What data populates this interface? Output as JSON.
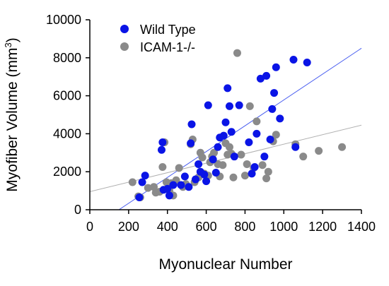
{
  "chart_data": {
    "type": "scatter",
    "title": "",
    "xlabel": "Myonuclear Number",
    "ylabel": "Myofiber Volume (mm3)",
    "ylabel_main": "Myofiber Volume (mm",
    "ylabel_sup": "3",
    "ylabel_close": ")",
    "xlim": [
      0,
      1400
    ],
    "ylim": [
      0,
      10000
    ],
    "xticks": [
      0,
      200,
      400,
      600,
      800,
      1000,
      1200,
      1400
    ],
    "yticks": [
      0,
      2000,
      4000,
      6000,
      8000,
      10000
    ],
    "grid": false,
    "legend_position": "top-left",
    "series": [
      {
        "name": "Wild Type",
        "color": "#0a14e6",
        "points": [
          [
            255,
            650
          ],
          [
            270,
            1450
          ],
          [
            285,
            1800
          ],
          [
            370,
            3150
          ],
          [
            375,
            3550
          ],
          [
            380,
            1050
          ],
          [
            400,
            1100
          ],
          [
            410,
            750
          ],
          [
            430,
            1300
          ],
          [
            470,
            1300
          ],
          [
            490,
            1750
          ],
          [
            510,
            1200
          ],
          [
            520,
            3500
          ],
          [
            525,
            4500
          ],
          [
            545,
            1600
          ],
          [
            560,
            2400
          ],
          [
            570,
            2000
          ],
          [
            590,
            1850
          ],
          [
            600,
            1500
          ],
          [
            610,
            5500
          ],
          [
            635,
            2650
          ],
          [
            650,
            1950
          ],
          [
            660,
            3300
          ],
          [
            670,
            3800
          ],
          [
            690,
            3900
          ],
          [
            700,
            4600
          ],
          [
            710,
            6400
          ],
          [
            720,
            5450
          ],
          [
            730,
            4100
          ],
          [
            745,
            2800
          ],
          [
            770,
            5500
          ],
          [
            820,
            3550
          ],
          [
            835,
            1900
          ],
          [
            850,
            2250
          ],
          [
            860,
            4000
          ],
          [
            880,
            6900
          ],
          [
            900,
            2800
          ],
          [
            910,
            7050
          ],
          [
            930,
            3700
          ],
          [
            940,
            5300
          ],
          [
            950,
            6150
          ],
          [
            960,
            7500
          ],
          [
            980,
            4800
          ],
          [
            1050,
            7900
          ],
          [
            1060,
            3300
          ],
          [
            1120,
            7750
          ]
        ]
      },
      {
        "name": "ICAM-1-/-",
        "color": "#8a8a8a",
        "points": [
          [
            220,
            1450
          ],
          [
            250,
            700
          ],
          [
            260,
            650
          ],
          [
            300,
            1150
          ],
          [
            330,
            1200
          ],
          [
            340,
            900
          ],
          [
            360,
            950
          ],
          [
            375,
            2250
          ],
          [
            385,
            3550
          ],
          [
            395,
            1450
          ],
          [
            410,
            1000
          ],
          [
            420,
            1400
          ],
          [
            430,
            750
          ],
          [
            445,
            1550
          ],
          [
            460,
            2200
          ],
          [
            480,
            1200
          ],
          [
            495,
            1350
          ],
          [
            520,
            3450
          ],
          [
            530,
            3700
          ],
          [
            540,
            1450
          ],
          [
            560,
            1700
          ],
          [
            570,
            3000
          ],
          [
            580,
            2750
          ],
          [
            590,
            1900
          ],
          [
            610,
            1800
          ],
          [
            620,
            2500
          ],
          [
            630,
            2800
          ],
          [
            640,
            3000
          ],
          [
            660,
            2400
          ],
          [
            670,
            1750
          ],
          [
            685,
            2350
          ],
          [
            700,
            3500
          ],
          [
            710,
            2900
          ],
          [
            720,
            3300
          ],
          [
            730,
            2950
          ],
          [
            740,
            1700
          ],
          [
            760,
            8250
          ],
          [
            780,
            2900
          ],
          [
            800,
            1800
          ],
          [
            810,
            2400
          ],
          [
            825,
            5450
          ],
          [
            845,
            2200
          ],
          [
            860,
            4650
          ],
          [
            890,
            2350
          ],
          [
            910,
            1650
          ],
          [
            920,
            2000
          ],
          [
            945,
            3600
          ],
          [
            960,
            3950
          ],
          [
            1060,
            3450
          ],
          [
            1100,
            2800
          ],
          [
            1180,
            3100
          ],
          [
            1300,
            3300
          ]
        ]
      }
    ],
    "fit_lines": [
      {
        "series": "Wild Type",
        "color": "#4a5ef0",
        "from": [
          150,
          0
        ],
        "to": [
          1400,
          8500
        ]
      },
      {
        "series": "ICAM-1-/-",
        "color": "#b0b0b0",
        "from": [
          0,
          950
        ],
        "to": [
          1400,
          4450
        ]
      }
    ]
  }
}
